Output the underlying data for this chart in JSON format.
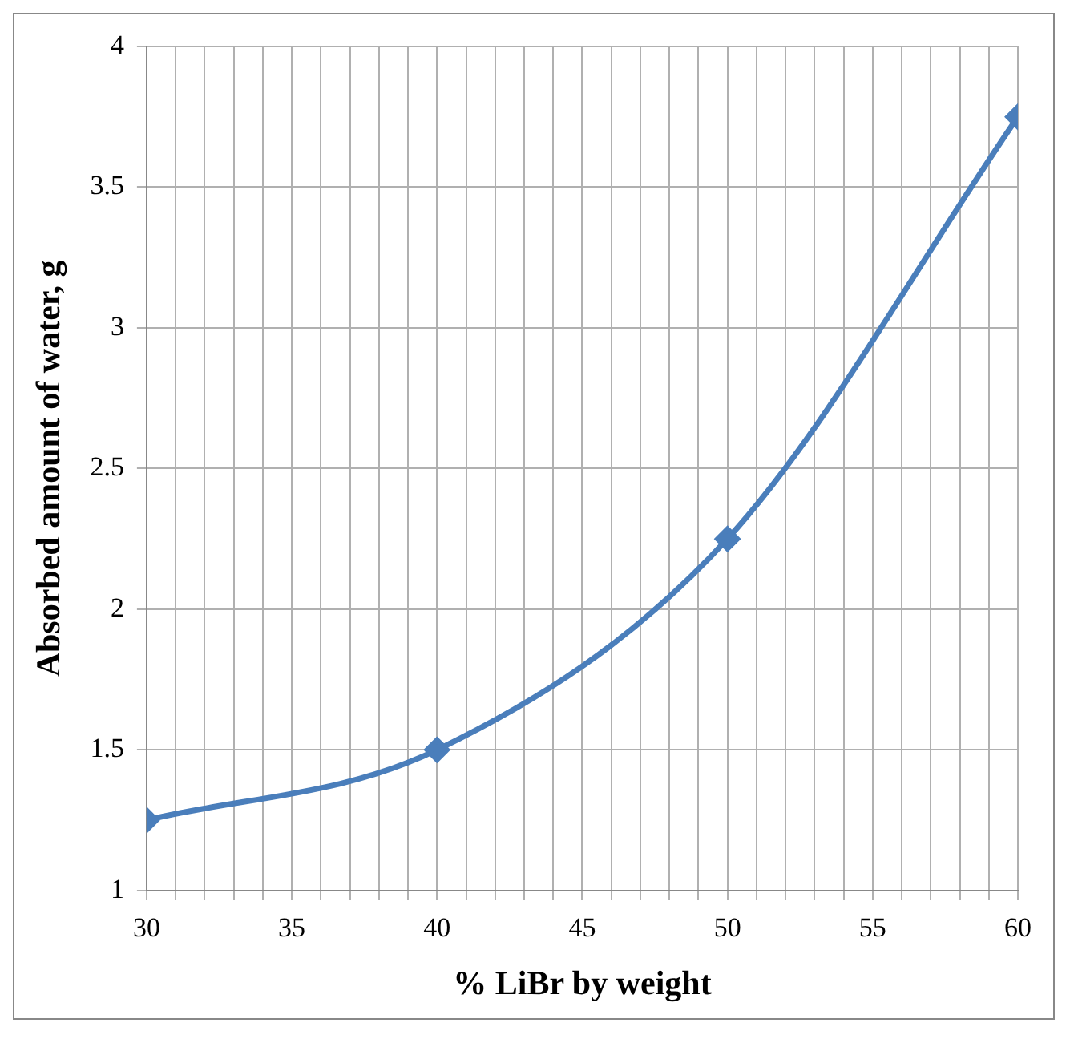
{
  "chart_data": {
    "type": "line",
    "xlabel": "% LiBr by weight",
    "ylabel": "Absorbed amount of water, g",
    "x": [
      30,
      40,
      50,
      60
    ],
    "series": [
      {
        "color": "#4a7ebb",
        "values": [
          1.25,
          1.5,
          2.25,
          3.75
        ]
      }
    ],
    "xlim": [
      30,
      60
    ],
    "xticks": [
      30,
      {
        "value": 31,
        "label": null
      },
      {
        "value": 32,
        "label": null
      },
      {
        "value": 33,
        "label": null
      },
      {
        "value": 34,
        "label": null
      },
      35,
      {
        "value": 36,
        "label": null
      },
      {
        "value": 37,
        "label": null
      },
      {
        "value": 38,
        "label": null
      },
      {
        "value": 39,
        "label": null
      },
      40,
      {
        "value": 41,
        "label": null
      },
      {
        "value": 42,
        "label": null
      },
      {
        "value": 43,
        "label": null
      },
      {
        "value": 44,
        "label": null
      },
      45,
      {
        "value": 46,
        "label": null
      },
      {
        "value": 47,
        "label": null
      },
      {
        "value": 48,
        "label": null
      },
      {
        "value": 49,
        "label": null
      },
      50,
      {
        "value": 51,
        "label": null
      },
      {
        "value": 52,
        "label": null
      },
      {
        "value": 53,
        "label": null
      },
      {
        "value": 54,
        "label": null
      },
      55,
      {
        "value": 56,
        "label": null
      },
      {
        "value": 57,
        "label": null
      },
      {
        "value": 58,
        "label": null
      },
      {
        "value": 59,
        "label": null
      },
      60
    ],
    "ylim": [
      1,
      4
    ],
    "yticks": [
      1,
      1.5,
      2,
      2.5,
      3,
      3.5,
      4
    ],
    "grid": true,
    "legend": false,
    "marker": "diamond",
    "line_style": "solid"
  }
}
